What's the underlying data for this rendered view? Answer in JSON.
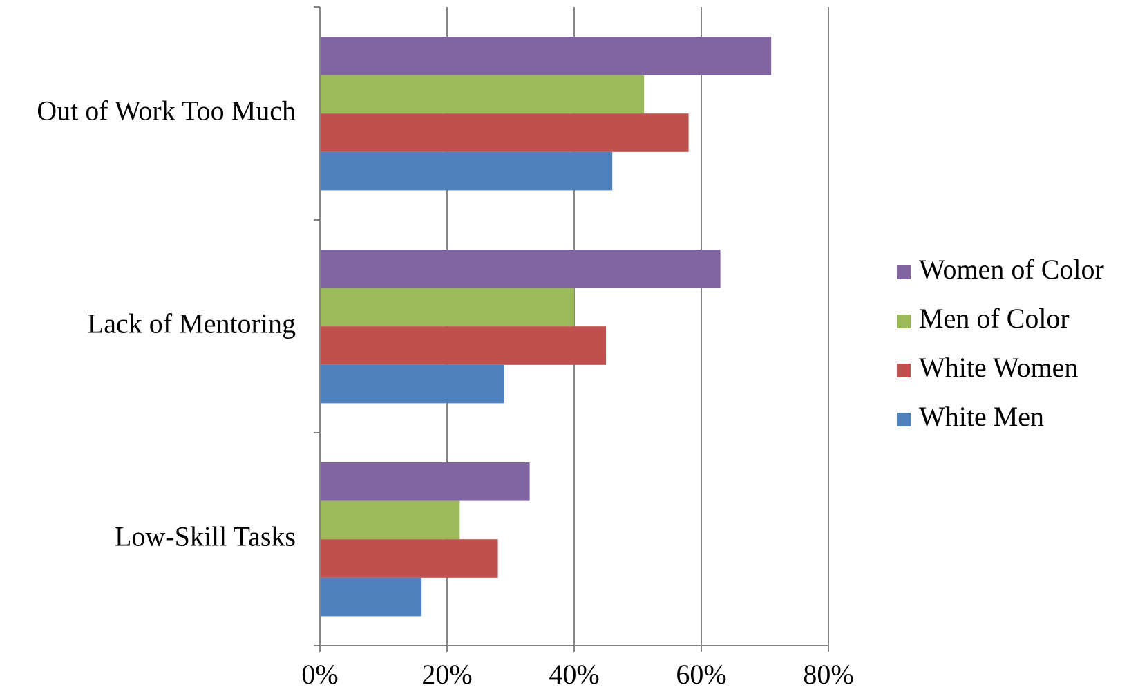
{
  "chart_data": {
    "type": "bar",
    "orientation": "horizontal",
    "title": "",
    "xlabel": "",
    "ylabel": "",
    "categories": [
      "Out of Work Too Much",
      "Lack of Mentoring",
      "Low-Skill Tasks"
    ],
    "xlim": [
      0,
      80
    ],
    "x_ticks": [
      "0%",
      "20%",
      "40%",
      "60%",
      "80%"
    ],
    "grid": "vertical major gridlines",
    "legend_position": "right",
    "series": [
      {
        "name": "Women of Color",
        "color": "#8064a2",
        "values": [
          71,
          63,
          33
        ]
      },
      {
        "name": "Men of Color",
        "color": "#9bbb59",
        "values": [
          51,
          40,
          22
        ]
      },
      {
        "name": "White Women",
        "color": "#c0504d",
        "values": [
          58,
          45,
          28
        ]
      },
      {
        "name": "White Men",
        "color": "#4f81bd",
        "values": [
          46,
          29,
          16
        ]
      }
    ]
  }
}
